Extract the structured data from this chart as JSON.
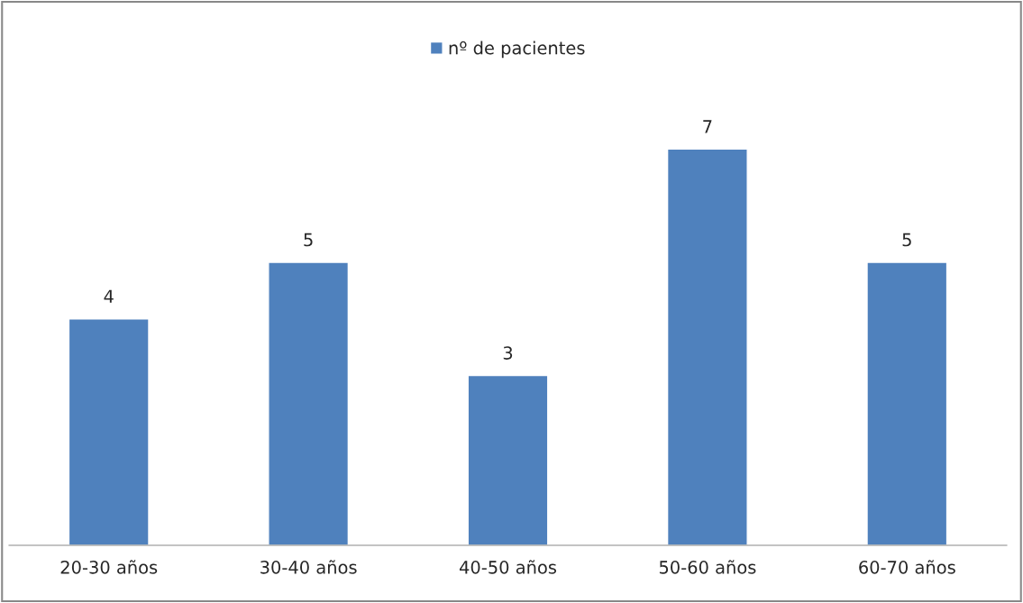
{
  "chart_data": {
    "type": "bar",
    "categories": [
      "20-30 años",
      "30-40 años",
      "40-50 años",
      "50-60 años",
      "60-70 años"
    ],
    "series": [
      {
        "name": "nº de pacientes",
        "color": "#4f81bd",
        "values": [
          4,
          5,
          3,
          7,
          5
        ]
      }
    ],
    "data_labels": true,
    "legend": "top",
    "grid": false
  }
}
